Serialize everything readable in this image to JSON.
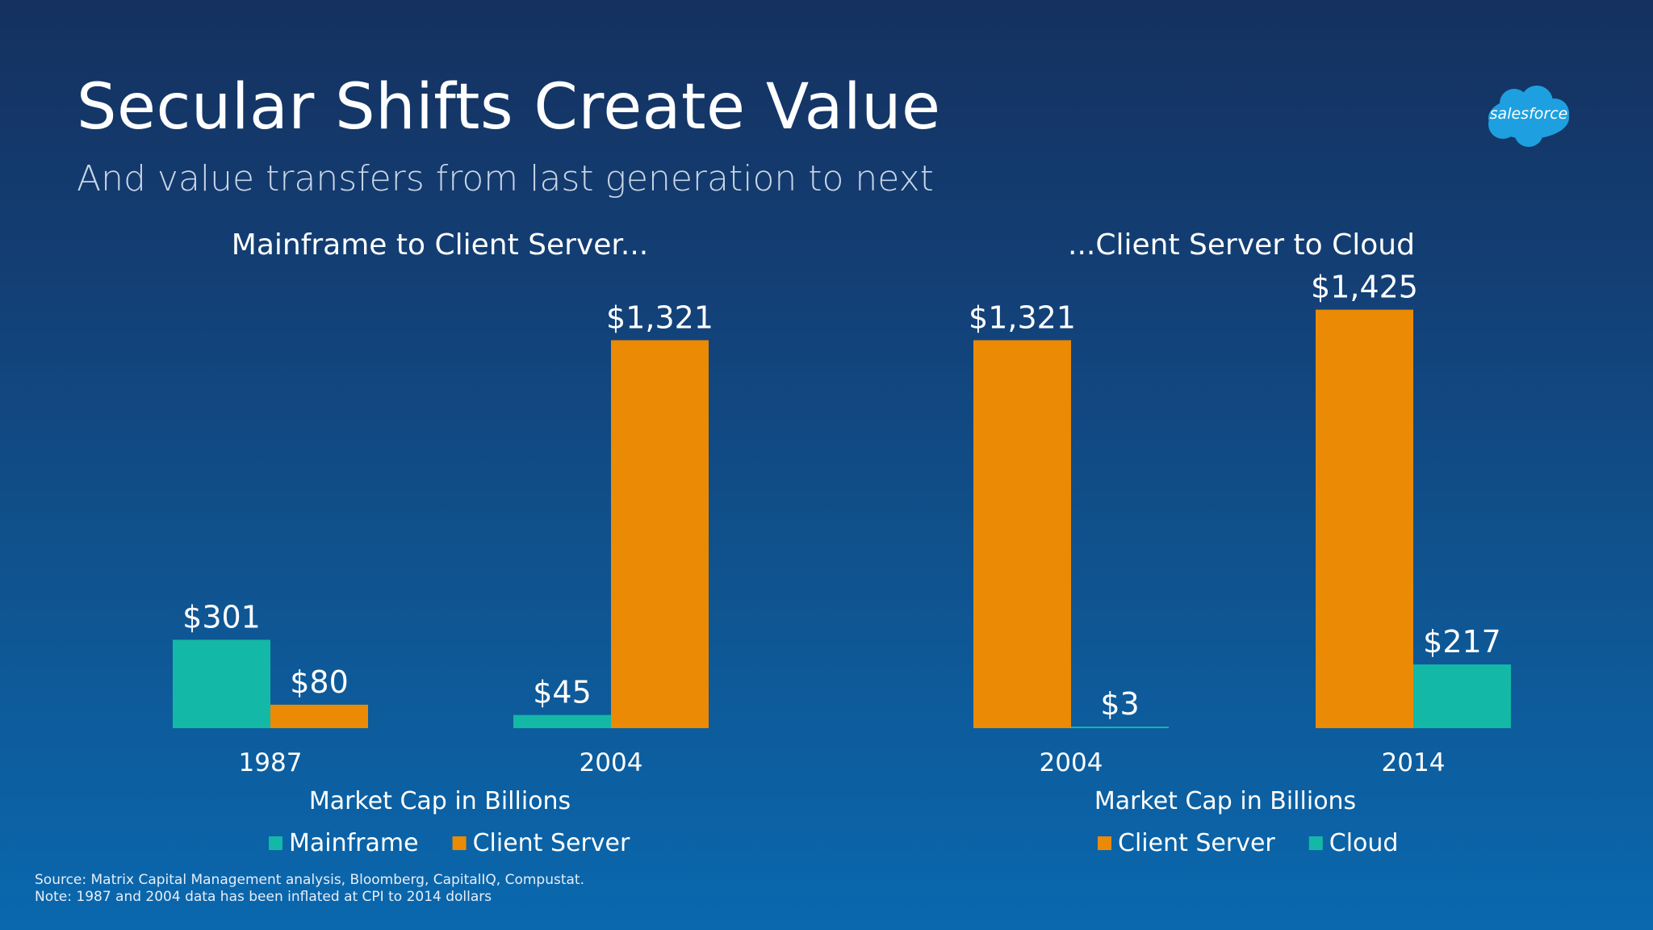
{
  "slide": {
    "title": "Secular Shifts Create Value",
    "subtitle": "And value transfers from last generation to next",
    "logo_text": "salesforce",
    "source_line": "Source:  Matrix Capital Management analysis, Bloomberg, CapitalIQ, Compustat.",
    "note_line": "Note: 1987 and 2004 data has been inflated at CPI to 2014 dollars"
  },
  "colors": {
    "mainframe": "#14b8a6",
    "client_server": "#ea8a05",
    "cloud": "#14b8a6",
    "logo": "#1ea0e0"
  },
  "chart_data": [
    {
      "type": "bar",
      "title": "Mainframe to Client Server...",
      "xlabel": "Market Cap in Billions",
      "categories": [
        "1987",
        "2004"
      ],
      "series": [
        {
          "name": "Mainframe",
          "values": [
            301,
            45
          ],
          "labels": [
            "$301",
            "$45"
          ]
        },
        {
          "name": "Client Server",
          "values": [
            80,
            1321
          ],
          "labels": [
            "$80",
            "$1,321"
          ]
        }
      ],
      "legend_position": "bottom",
      "grid": false
    },
    {
      "type": "bar",
      "title": "...Client Server to Cloud",
      "xlabel": "Market Cap in Billions",
      "categories": [
        "2004",
        "2014"
      ],
      "series": [
        {
          "name": "Client Server",
          "values": [
            1321,
            1425
          ],
          "labels": [
            "$1,321",
            "$1,425"
          ]
        },
        {
          "name": "Cloud",
          "values": [
            3,
            217
          ],
          "labels": [
            "$3",
            "$217"
          ]
        }
      ],
      "legend_position": "bottom",
      "grid": false
    }
  ]
}
